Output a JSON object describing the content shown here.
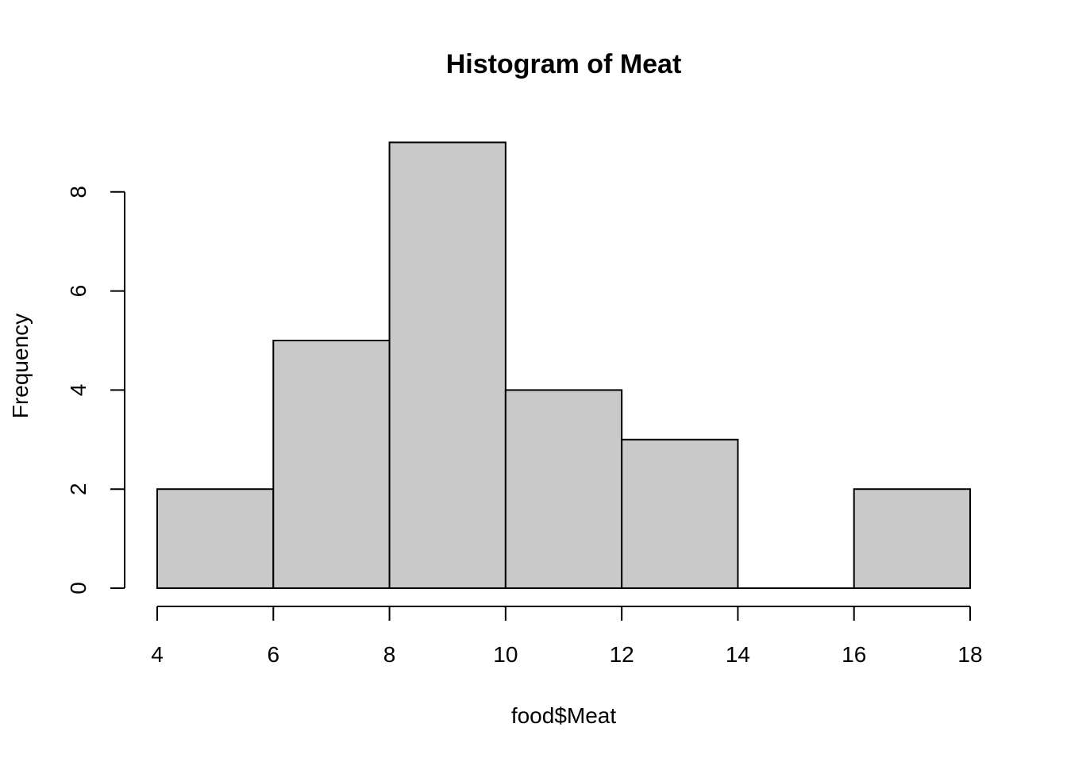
{
  "chart_data": {
    "type": "bar",
    "title": "Histogram of Meat",
    "xlabel": "food$Meat",
    "ylabel": "Frequency",
    "bins": [
      {
        "from": 4,
        "to": 6,
        "count": 2
      },
      {
        "from": 6,
        "to": 8,
        "count": 5
      },
      {
        "from": 8,
        "to": 10,
        "count": 9
      },
      {
        "from": 10,
        "to": 12,
        "count": 4
      },
      {
        "from": 12,
        "to": 14,
        "count": 3
      },
      {
        "from": 14,
        "to": 16,
        "count": 0
      },
      {
        "from": 16,
        "to": 18,
        "count": 2
      }
    ],
    "xlim": [
      4,
      18
    ],
    "ylim": [
      0,
      8
    ],
    "x_ticks": [
      4,
      6,
      8,
      10,
      12,
      14,
      16,
      18
    ],
    "y_ticks": [
      0,
      2,
      4,
      6,
      8
    ],
    "grid": false,
    "legend": "none",
    "colors": {
      "bar_fill": "#c9c9c9",
      "bar_stroke": "#000000"
    }
  }
}
